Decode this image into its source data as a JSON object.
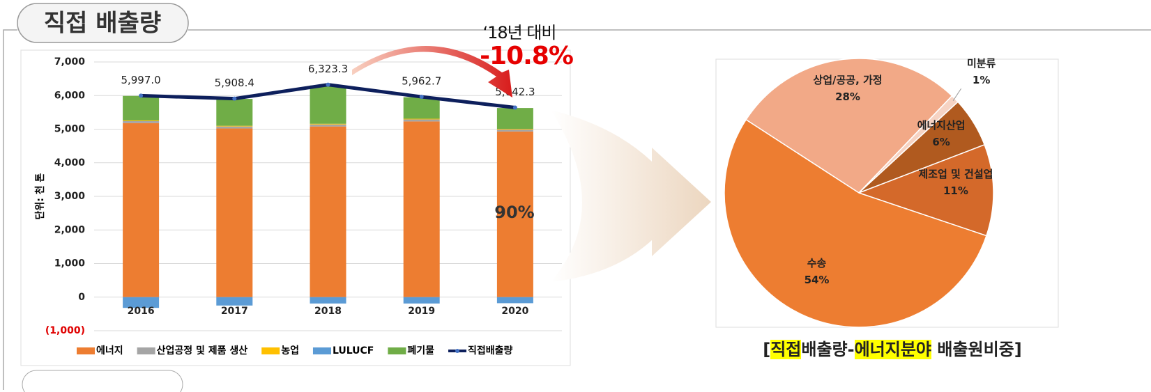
{
  "header": {
    "title": "직접 배출량"
  },
  "annotations": {
    "compare": "‘18년 대비",
    "change": "-10.8%",
    "share": "90%"
  },
  "caption": [
    {
      "text": "[",
      "highlight": false
    },
    {
      "text": "직접",
      "highlight": true
    },
    {
      "text": "배출량-",
      "highlight": false
    },
    {
      "text": "에너지분야",
      "highlight": true
    },
    {
      "text": " 배출원비중]",
      "highlight": false
    }
  ],
  "chart_data": [
    {
      "type": "bar",
      "stacked": true,
      "y_label": "단위: 천 톤",
      "categories": [
        "2016",
        "2017",
        "2018",
        "2019",
        "2020"
      ],
      "ylim": [
        -1000,
        7000
      ],
      "yticks": [
        {
          "value": -1000,
          "label": "(1,000)"
        },
        0,
        {
          "value": 1000,
          "label": "1,000"
        },
        {
          "value": 2000,
          "label": "2,000"
        },
        {
          "value": 3000,
          "label": "3,000"
        },
        {
          "value": 4000,
          "label": "4,000"
        },
        {
          "value": 5000,
          "label": "5,000"
        },
        {
          "value": 6000,
          "label": "6,000"
        },
        {
          "value": 7000,
          "label": "7,000"
        }
      ],
      "grid": true,
      "series": [
        {
          "name": "에너지",
          "color": "#ed7d31",
          "values": [
            5180,
            5020,
            5080,
            5230,
            4930
          ]
        },
        {
          "name": "산업공정 및 제품 생산",
          "color": "#a5a5a5",
          "values": [
            60,
            60,
            60,
            60,
            60
          ]
        },
        {
          "name": "농업",
          "color": "#ffc000",
          "values": [
            20,
            20,
            20,
            20,
            20
          ]
        },
        {
          "name": "LULUCF",
          "color": "#5b9bd5",
          "values": [
            -320,
            -250,
            -190,
            -190,
            -180
          ]
        },
        {
          "name": "폐기물",
          "color": "#70ad47",
          "values": [
            730,
            800,
            1140,
            640,
            620
          ]
        },
        {
          "name": "직접배출량",
          "color": "#0d1f5c",
          "type": "line",
          "values": [
            5997.0,
            5908.4,
            6323.3,
            5962.7,
            5642.3
          ],
          "value_labels": [
            "5,997.0",
            "5,908.4",
            "6,323.3",
            "5,962.7",
            "5,642.3"
          ]
        }
      ]
    },
    {
      "type": "pie",
      "categories": [
        "상업/공공, 가정",
        "미분류",
        "에너지산업",
        "제조업 및 건설업",
        "수송"
      ],
      "values": [
        28,
        1,
        6,
        11,
        54
      ],
      "value_labels": [
        "28%",
        "1%",
        "6%",
        "11%",
        "54%"
      ],
      "colors": [
        "#f2a987",
        "#f6d3c3",
        "#b05a1f",
        "#d4692a",
        "#ed7d31"
      ],
      "start_angle": 303
    }
  ]
}
